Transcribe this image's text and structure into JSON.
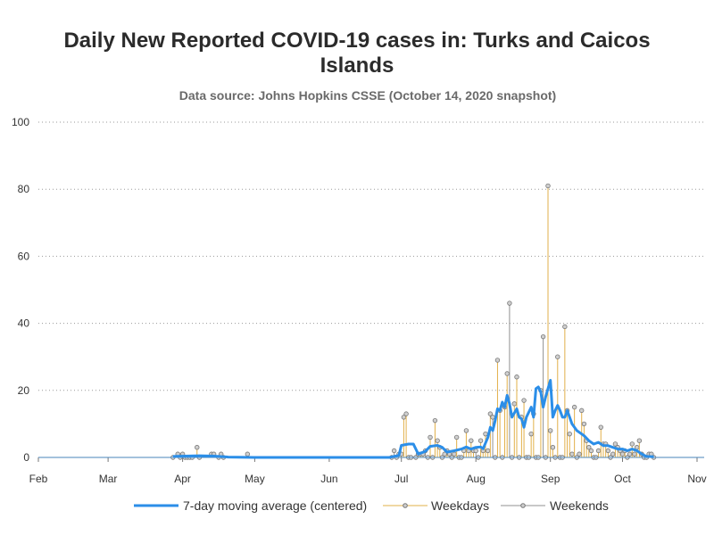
{
  "chart_data": {
    "type": "line",
    "title": "Daily New Reported COVID-19 cases in: Turks and Caicos Islands",
    "title_lines": [
      "Daily New Reported COVID-19 cases in: Turks and Caicos",
      "Islands"
    ],
    "subtitle": "Data source: Johns Hopkins CSSE (October 14, 2020 snapshot)",
    "xlabel": "",
    "ylabel": "",
    "ylim": [
      0,
      100
    ],
    "y_ticks": [
      0,
      20,
      40,
      60,
      80,
      100
    ],
    "x_ticks": [
      "Feb",
      "Mar",
      "Apr",
      "May",
      "Jun",
      "Jul",
      "Aug",
      "Sep",
      "Oct",
      "Nov"
    ],
    "x_range": [
      "2020-02-01",
      "2020-11-01"
    ],
    "grid": "horizontal dotted",
    "legend_position": "bottom",
    "colors": {
      "moving_average": "#2b8ee8",
      "weekdays": "#e2b04a",
      "weekends": "#909090",
      "marker_fill": "#cfcfcf"
    },
    "series": [
      {
        "name": "Weekdays",
        "style": "needle",
        "points": [
          [
            "2020-03-30",
            1
          ],
          [
            "2020-03-31",
            0
          ],
          [
            "2020-04-01",
            1
          ],
          [
            "2020-04-02",
            0
          ],
          [
            "2020-04-03",
            0
          ],
          [
            "2020-04-07",
            3
          ],
          [
            "2020-04-08",
            0
          ],
          [
            "2020-04-13",
            1
          ],
          [
            "2020-04-14",
            1
          ],
          [
            "2020-04-16",
            0
          ],
          [
            "2020-04-17",
            1
          ],
          [
            "2020-04-28",
            1
          ],
          [
            "2020-06-29",
            0
          ],
          [
            "2020-06-30",
            1
          ],
          [
            "2020-07-01",
            1
          ],
          [
            "2020-07-02",
            12
          ],
          [
            "2020-07-03",
            13
          ],
          [
            "2020-07-07",
            0
          ],
          [
            "2020-07-08",
            1
          ],
          [
            "2020-07-09",
            1
          ],
          [
            "2020-07-10",
            1
          ],
          [
            "2020-07-13",
            6
          ],
          [
            "2020-07-14",
            0
          ],
          [
            "2020-07-15",
            11
          ],
          [
            "2020-07-16",
            5
          ],
          [
            "2020-07-17",
            3
          ],
          [
            "2020-07-20",
            2
          ],
          [
            "2020-07-21",
            1
          ],
          [
            "2020-07-22",
            0
          ],
          [
            "2020-07-23",
            1
          ],
          [
            "2020-07-24",
            6
          ],
          [
            "2020-07-27",
            2
          ],
          [
            "2020-07-28",
            8
          ],
          [
            "2020-07-29",
            2
          ],
          [
            "2020-07-30",
            5
          ],
          [
            "2020-07-31",
            2
          ],
          [
            "2020-08-03",
            5
          ],
          [
            "2020-08-04",
            2
          ],
          [
            "2020-08-05",
            7
          ],
          [
            "2020-08-06",
            2
          ],
          [
            "2020-08-07",
            13
          ],
          [
            "2020-08-10",
            29
          ],
          [
            "2020-08-11",
            14
          ],
          [
            "2020-08-12",
            0
          ],
          [
            "2020-08-13",
            15
          ],
          [
            "2020-08-14",
            25
          ],
          [
            "2020-08-17",
            16
          ],
          [
            "2020-08-18",
            24
          ],
          [
            "2020-08-19",
            0
          ],
          [
            "2020-08-20",
            12
          ],
          [
            "2020-08-21",
            17
          ],
          [
            "2020-08-24",
            7
          ],
          [
            "2020-08-25",
            13
          ],
          [
            "2020-08-26",
            0
          ],
          [
            "2020-08-27",
            0
          ],
          [
            "2020-08-28",
            20
          ],
          [
            "2020-08-31",
            81
          ],
          [
            "2020-09-01",
            8
          ],
          [
            "2020-09-02",
            3
          ],
          [
            "2020-09-03",
            0
          ],
          [
            "2020-09-04",
            30
          ],
          [
            "2020-09-07",
            39
          ],
          [
            "2020-09-08",
            14
          ],
          [
            "2020-09-09",
            7
          ],
          [
            "2020-09-10",
            1
          ],
          [
            "2020-09-11",
            15
          ],
          [
            "2020-09-14",
            14
          ],
          [
            "2020-09-15",
            10
          ],
          [
            "2020-09-16",
            5
          ],
          [
            "2020-09-17",
            3
          ],
          [
            "2020-09-18",
            2
          ],
          [
            "2020-09-21",
            2
          ],
          [
            "2020-09-22",
            9
          ],
          [
            "2020-09-23",
            4
          ],
          [
            "2020-09-24",
            4
          ],
          [
            "2020-09-25",
            2
          ],
          [
            "2020-09-28",
            4
          ],
          [
            "2020-09-29",
            3
          ],
          [
            "2020-09-30",
            2
          ],
          [
            "2020-10-01",
            1
          ],
          [
            "2020-10-02",
            2
          ],
          [
            "2020-10-05",
            4
          ],
          [
            "2020-10-06",
            1
          ],
          [
            "2020-10-07",
            3
          ],
          [
            "2020-10-08",
            5
          ],
          [
            "2020-10-09",
            1
          ],
          [
            "2020-10-12",
            1
          ],
          [
            "2020-10-13",
            1
          ],
          [
            "2020-10-14",
            0
          ]
        ]
      },
      {
        "name": "Weekends",
        "style": "needle",
        "points": [
          [
            "2020-03-28",
            0
          ],
          [
            "2020-04-04",
            0
          ],
          [
            "2020-04-05",
            0
          ],
          [
            "2020-04-18",
            0
          ],
          [
            "2020-06-27",
            0
          ],
          [
            "2020-06-28",
            2
          ],
          [
            "2020-07-04",
            0
          ],
          [
            "2020-07-05",
            0
          ],
          [
            "2020-07-11",
            2
          ],
          [
            "2020-07-12",
            0
          ],
          [
            "2020-07-18",
            0
          ],
          [
            "2020-07-19",
            1
          ],
          [
            "2020-07-25",
            0
          ],
          [
            "2020-07-26",
            0
          ],
          [
            "2020-08-01",
            2
          ],
          [
            "2020-08-02",
            0
          ],
          [
            "2020-08-08",
            12
          ],
          [
            "2020-08-09",
            0
          ],
          [
            "2020-08-15",
            46
          ],
          [
            "2020-08-16",
            0
          ],
          [
            "2020-08-22",
            0
          ],
          [
            "2020-08-23",
            0
          ],
          [
            "2020-08-29",
            36
          ],
          [
            "2020-08-30",
            0
          ],
          [
            "2020-09-05",
            0
          ],
          [
            "2020-09-06",
            0
          ],
          [
            "2020-09-12",
            0
          ],
          [
            "2020-09-13",
            1
          ],
          [
            "2020-09-19",
            0
          ],
          [
            "2020-09-20",
            0
          ],
          [
            "2020-09-26",
            0
          ],
          [
            "2020-09-27",
            1
          ],
          [
            "2020-10-03",
            0
          ],
          [
            "2020-10-04",
            1
          ],
          [
            "2020-10-10",
            0
          ],
          [
            "2020-10-11",
            0
          ]
        ]
      },
      {
        "name": "7-day moving average (centered)",
        "style": "line",
        "points": [
          [
            "2020-03-28",
            0.3
          ],
          [
            "2020-04-02",
            0.4
          ],
          [
            "2020-04-08",
            0.5
          ],
          [
            "2020-04-14",
            0.4
          ],
          [
            "2020-04-20",
            0.1
          ],
          [
            "2020-05-01",
            0
          ],
          [
            "2020-06-01",
            0
          ],
          [
            "2020-06-26",
            0
          ],
          [
            "2020-06-30",
            0.6
          ],
          [
            "2020-07-01",
            3.6
          ],
          [
            "2020-07-04",
            4.0
          ],
          [
            "2020-07-06",
            4.0
          ],
          [
            "2020-07-08",
            1.0
          ],
          [
            "2020-07-11",
            1.8
          ],
          [
            "2020-07-13",
            3.3
          ],
          [
            "2020-07-16",
            3.6
          ],
          [
            "2020-07-18",
            3.0
          ],
          [
            "2020-07-20",
            1.6
          ],
          [
            "2020-07-23",
            2.0
          ],
          [
            "2020-07-26",
            2.5
          ],
          [
            "2020-07-28",
            3.1
          ],
          [
            "2020-07-30",
            2.5
          ],
          [
            "2020-08-01",
            3.0
          ],
          [
            "2020-08-03",
            3.1
          ],
          [
            "2020-08-04",
            2.6
          ],
          [
            "2020-08-06",
            6.0
          ],
          [
            "2020-08-07",
            9.0
          ],
          [
            "2020-08-08",
            8.0
          ],
          [
            "2020-08-09",
            11.0
          ],
          [
            "2020-08-10",
            14.5
          ],
          [
            "2020-08-11",
            14.0
          ],
          [
            "2020-08-12",
            16.5
          ],
          [
            "2020-08-13",
            15.0
          ],
          [
            "2020-08-14",
            18.5
          ],
          [
            "2020-08-15",
            16.0
          ],
          [
            "2020-08-16",
            12.0
          ],
          [
            "2020-08-18",
            14.5
          ],
          [
            "2020-08-19",
            12.0
          ],
          [
            "2020-08-20",
            11.5
          ],
          [
            "2020-08-21",
            9.0
          ],
          [
            "2020-08-22",
            12.0
          ],
          [
            "2020-08-24",
            15.0
          ],
          [
            "2020-08-25",
            12.0
          ],
          [
            "2020-08-26",
            20.5
          ],
          [
            "2020-08-27",
            21.0
          ],
          [
            "2020-08-28",
            19.5
          ],
          [
            "2020-08-29",
            15.0
          ],
          [
            "2020-08-30",
            18.0
          ],
          [
            "2020-09-01",
            23.0
          ],
          [
            "2020-09-02",
            12.0
          ],
          [
            "2020-09-03",
            14.0
          ],
          [
            "2020-09-04",
            15.5
          ],
          [
            "2020-09-05",
            14.0
          ],
          [
            "2020-09-06",
            12.0
          ],
          [
            "2020-09-07",
            12.0
          ],
          [
            "2020-09-08",
            14.0
          ],
          [
            "2020-09-10",
            10.0
          ],
          [
            "2020-09-12",
            8.0
          ],
          [
            "2020-09-14",
            7.0
          ],
          [
            "2020-09-15",
            6.5
          ],
          [
            "2020-09-17",
            5.0
          ],
          [
            "2020-09-19",
            4.0
          ],
          [
            "2020-09-21",
            4.5
          ],
          [
            "2020-09-23",
            3.5
          ],
          [
            "2020-09-25",
            3.5
          ],
          [
            "2020-09-27",
            3.0
          ],
          [
            "2020-09-29",
            2.5
          ],
          [
            "2020-10-01",
            2.5
          ],
          [
            "2020-10-03",
            2.0
          ],
          [
            "2020-10-05",
            2.5
          ],
          [
            "2020-10-07",
            2.0
          ],
          [
            "2020-10-09",
            1.0
          ],
          [
            "2020-10-11",
            0.3
          ],
          [
            "2020-10-14",
            0.2
          ]
        ]
      }
    ]
  }
}
